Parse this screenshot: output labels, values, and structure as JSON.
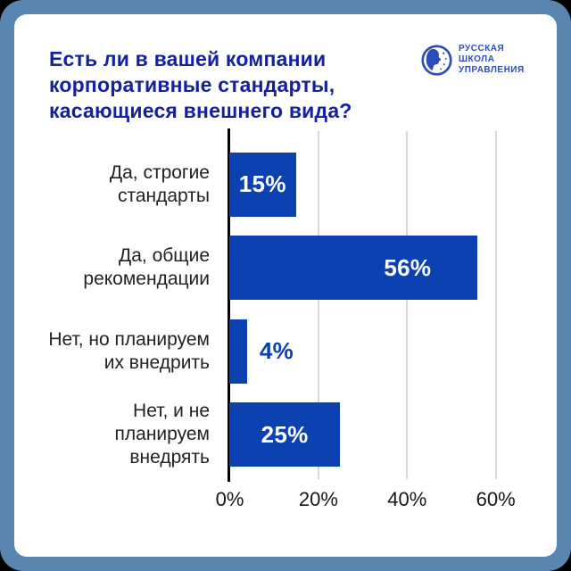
{
  "header": {
    "title": "Есть ли в вашей компании корпоративные стандарты, касающиеся внешнего вида?",
    "title_lines": [
      "Есть ли в вашей компании",
      "корпоративные стандарты,",
      "касающиеся внешнего вида?"
    ]
  },
  "logo": {
    "icon": "rsu-profile-globe-icon",
    "lines": [
      "РУССКАЯ",
      "ШКОЛА",
      "УПРАВЛЕНИЯ"
    ]
  },
  "chart_data": {
    "type": "bar",
    "orientation": "horizontal",
    "title": "Есть ли в вашей компании корпоративные стандарты, касающиеся внешнего вида?",
    "categories": [
      "Да, строгие стандарты",
      "Да, общие рекомендации",
      "Нет, но планируем их внедрить",
      "Нет, и не планируем внедрять"
    ],
    "category_lines": [
      [
        "Да, строгие",
        "стандарты"
      ],
      [
        "Да, общие",
        "рекомендации"
      ],
      [
        "Нет, но планируем",
        "их внедрить"
      ],
      [
        "Нет, и не планируем",
        "внедрять"
      ]
    ],
    "values": [
      15,
      56,
      4,
      25
    ],
    "value_labels": [
      "15%",
      "56%",
      "4%",
      "25%"
    ],
    "xlabel": "",
    "ylabel": "",
    "xlim": [
      0,
      66
    ],
    "x_tick_values": [
      0,
      20,
      40,
      60
    ],
    "x_tick_labels": [
      "0%",
      "20%",
      "40%",
      "60%"
    ],
    "grid": "vertical-only",
    "legend": "none",
    "colors": {
      "bar": "#0b41b0",
      "value_inside": "#ffffff",
      "value_outside": "#0b41b0",
      "gridline": "#d8d8d8",
      "axis": "#000000",
      "title": "#14219e",
      "frame": "#5886af",
      "card": "#ffffff"
    }
  }
}
